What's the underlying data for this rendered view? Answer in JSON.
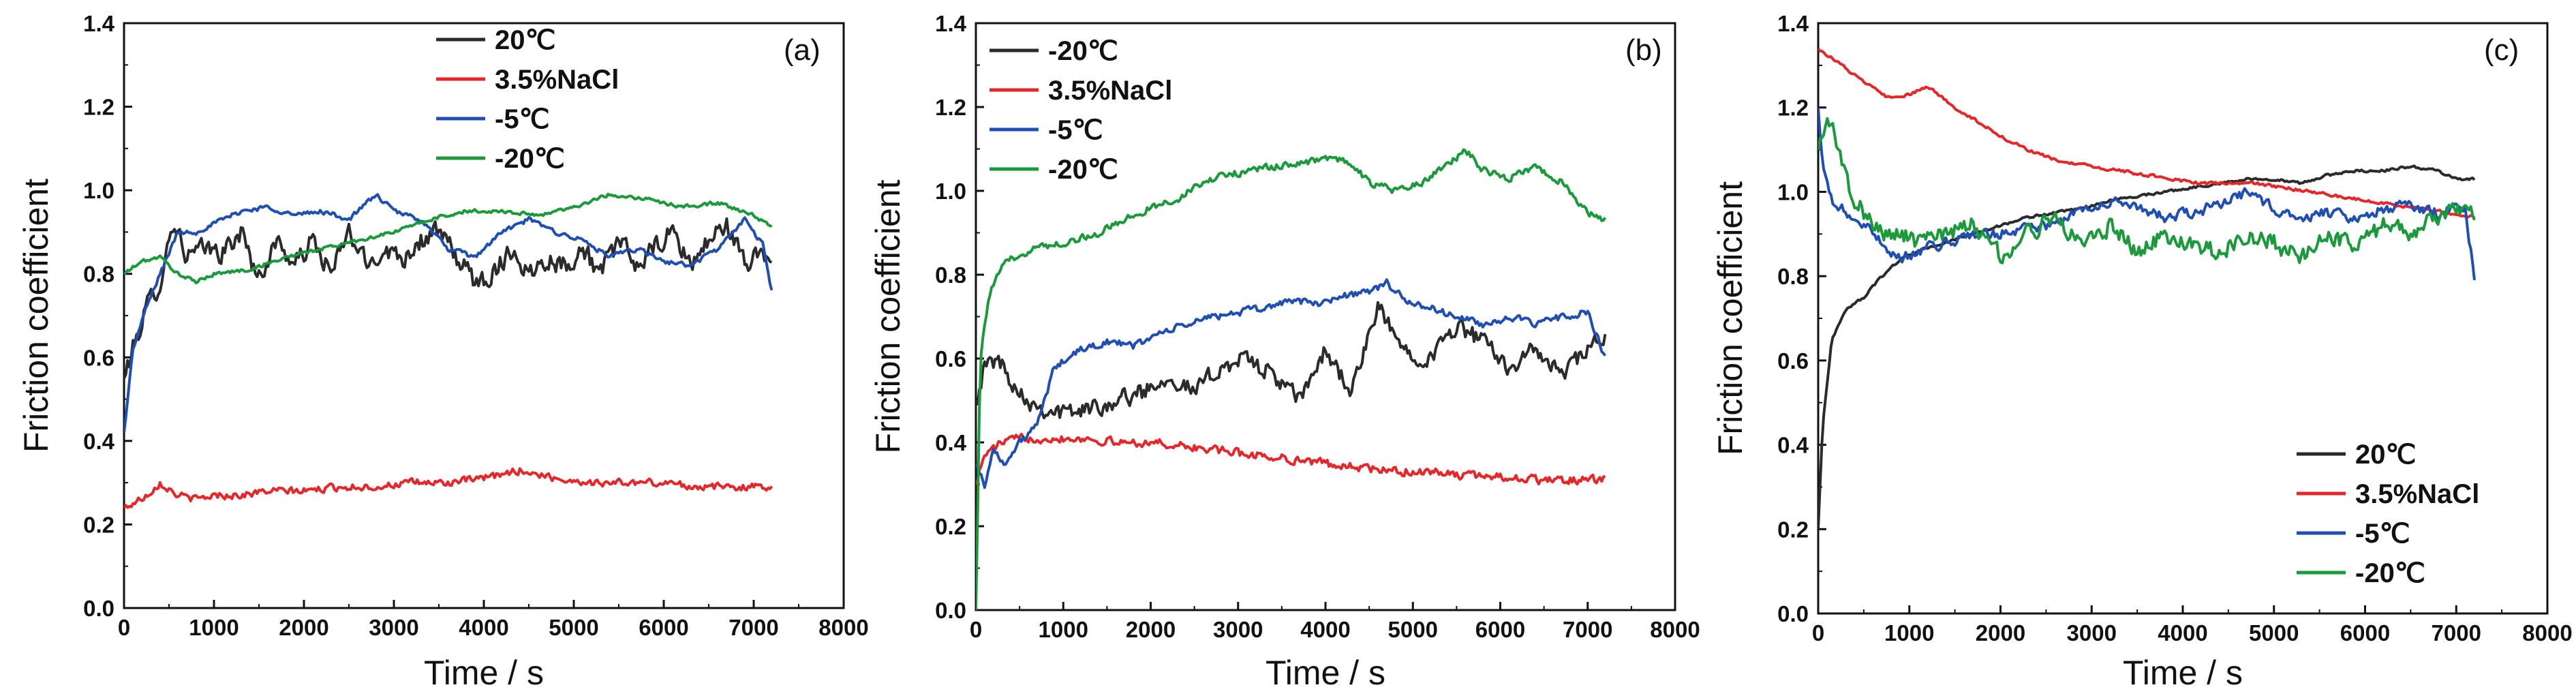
{
  "colors": {
    "black": "#2b2b2b",
    "red": "#e8262a",
    "blue": "#1f4fb4",
    "green": "#1a9a3a",
    "axis": "#111111"
  },
  "chart_data": [
    {
      "type": "line",
      "panel_label": "(a)",
      "xlabel": "Time / s",
      "ylabel": "Friction coefficient",
      "xlim": [
        0,
        8000
      ],
      "ylim": [
        0.0,
        1.4
      ],
      "xticks": [
        0,
        1000,
        2000,
        3000,
        4000,
        5000,
        6000,
        7000,
        8000
      ],
      "yticks": [
        "0.0",
        "0.2",
        "0.4",
        "0.6",
        "0.8",
        "1.0",
        "1.2",
        "1.4"
      ],
      "grid": false,
      "legend_position": "top-center",
      "series": [
        {
          "name": "20℃",
          "color": "black",
          "x": [
            0,
            100,
            250,
            400,
            550,
            700,
            900,
            1100,
            1300,
            1500,
            1700,
            1900,
            2100,
            2300,
            2500,
            2700,
            2900,
            3100,
            3300,
            3500,
            3700,
            3900,
            4100,
            4300,
            4500,
            4700,
            4900,
            5100,
            5300,
            5500,
            5700,
            5900,
            6100,
            6300,
            6500,
            6700,
            6900,
            7100,
            7200
          ],
          "y": [
            0.55,
            0.62,
            0.72,
            0.78,
            0.93,
            0.84,
            0.86,
            0.85,
            0.9,
            0.79,
            0.88,
            0.82,
            0.88,
            0.8,
            0.9,
            0.82,
            0.86,
            0.84,
            0.88,
            0.9,
            0.84,
            0.78,
            0.8,
            0.86,
            0.8,
            0.84,
            0.82,
            0.86,
            0.8,
            0.88,
            0.82,
            0.86,
            0.9,
            0.82,
            0.88,
            0.92,
            0.82,
            0.86,
            0.82
          ],
          "noise": 0.035
        },
        {
          "name": "3.5%NaCl",
          "color": "red",
          "x": [
            0,
            100,
            250,
            400,
            600,
            800,
            1000,
            1300,
            1600,
            2000,
            2400,
            2800,
            3200,
            3600,
            4000,
            4400,
            4800,
            5200,
            5600,
            6000,
            6400,
            6800,
            7200
          ],
          "y": [
            0.24,
            0.25,
            0.27,
            0.3,
            0.27,
            0.26,
            0.27,
            0.27,
            0.28,
            0.28,
            0.29,
            0.29,
            0.3,
            0.3,
            0.31,
            0.33,
            0.31,
            0.3,
            0.3,
            0.3,
            0.29,
            0.29,
            0.29
          ],
          "noise": 0.012
        },
        {
          "name": "-5℃",
          "color": "blue",
          "x": [
            0,
            100,
            250,
            400,
            600,
            800,
            1000,
            1300,
            1600,
            1900,
            2200,
            2500,
            2800,
            3000,
            3300,
            3600,
            3900,
            4200,
            4500,
            4800,
            5100,
            5400,
            5700,
            6000,
            6300,
            6600,
            6900,
            7100,
            7200
          ],
          "y": [
            0.42,
            0.62,
            0.72,
            0.8,
            0.9,
            0.9,
            0.92,
            0.95,
            0.96,
            0.94,
            0.95,
            0.93,
            0.99,
            0.95,
            0.93,
            0.86,
            0.84,
            0.9,
            0.93,
            0.9,
            0.88,
            0.84,
            0.86,
            0.83,
            0.82,
            0.86,
            0.93,
            0.87,
            0.76
          ],
          "noise": 0.008
        },
        {
          "name": "-20℃",
          "color": "green",
          "x": [
            0,
            200,
            400,
            600,
            800,
            1000,
            1400,
            1800,
            2200,
            2600,
            3000,
            3400,
            3800,
            4200,
            4600,
            5000,
            5400,
            5800,
            6200,
            6600,
            7000,
            7200
          ],
          "y": [
            0.8,
            0.83,
            0.84,
            0.8,
            0.78,
            0.8,
            0.81,
            0.84,
            0.86,
            0.88,
            0.9,
            0.93,
            0.95,
            0.95,
            0.94,
            0.96,
            0.99,
            0.98,
            0.96,
            0.97,
            0.94,
            0.91
          ],
          "noise": 0.006
        }
      ]
    },
    {
      "type": "line",
      "panel_label": "(b)",
      "xlabel": "Time / s",
      "ylabel": "Friction coefficient",
      "xlim": [
        0,
        8000
      ],
      "ylim": [
        0.0,
        1.4
      ],
      "xticks": [
        0,
        1000,
        2000,
        3000,
        4000,
        5000,
        6000,
        7000,
        8000
      ],
      "yticks": [
        "0.0",
        "0.2",
        "0.4",
        "0.6",
        "0.8",
        "1.0",
        "1.2",
        "1.4"
      ],
      "grid": false,
      "legend_position": "top-left",
      "series": [
        {
          "name": "-20℃",
          "color": "black",
          "x": [
            0,
            100,
            250,
            400,
            600,
            800,
            1000,
            1300,
            1600,
            1900,
            2200,
            2500,
            2800,
            3100,
            3400,
            3700,
            4000,
            4300,
            4600,
            4900,
            5200,
            5500,
            5800,
            6100,
            6400,
            6700,
            7000,
            7200
          ],
          "y": [
            0.5,
            0.58,
            0.6,
            0.55,
            0.5,
            0.48,
            0.47,
            0.48,
            0.5,
            0.52,
            0.56,
            0.52,
            0.58,
            0.6,
            0.56,
            0.5,
            0.62,
            0.52,
            0.72,
            0.62,
            0.6,
            0.68,
            0.64,
            0.58,
            0.62,
            0.56,
            0.62,
            0.65
          ],
          "noise": 0.03
        },
        {
          "name": "3.5%NaCl",
          "color": "red",
          "x": [
            0,
            100,
            300,
            500,
            800,
            1200,
            1600,
            2000,
            2400,
            2800,
            3200,
            3600,
            4000,
            4400,
            4800,
            5200,
            5600,
            6000,
            6400,
            6800,
            7200
          ],
          "y": [
            0.3,
            0.37,
            0.4,
            0.41,
            0.41,
            0.41,
            0.4,
            0.4,
            0.39,
            0.38,
            0.37,
            0.36,
            0.35,
            0.34,
            0.33,
            0.33,
            0.32,
            0.32,
            0.31,
            0.31,
            0.31
          ],
          "noise": 0.014
        },
        {
          "name": "-5℃",
          "color": "blue",
          "x": [
            0,
            100,
            200,
            350,
            500,
            700,
            900,
            1200,
            1500,
            1800,
            2100,
            2400,
            2700,
            3000,
            3300,
            3600,
            3900,
            4200,
            4500,
            4700,
            4900,
            5200,
            5500,
            5800,
            6100,
            6400,
            6700,
            7000,
            7200
          ],
          "y": [
            0.35,
            0.3,
            0.38,
            0.35,
            0.4,
            0.44,
            0.58,
            0.62,
            0.64,
            0.63,
            0.66,
            0.68,
            0.7,
            0.71,
            0.72,
            0.74,
            0.73,
            0.75,
            0.76,
            0.78,
            0.74,
            0.72,
            0.7,
            0.68,
            0.7,
            0.68,
            0.7,
            0.71,
            0.6
          ],
          "noise": 0.012
        },
        {
          "name": "-20℃",
          "color": "green",
          "x": [
            0,
            50,
            150,
            300,
            500,
            800,
            1100,
            1400,
            1700,
            2000,
            2300,
            2600,
            2900,
            3200,
            3500,
            3800,
            4100,
            4300,
            4500,
            4800,
            5100,
            5400,
            5600,
            5800,
            6100,
            6400,
            6700,
            7000,
            7200
          ],
          "y": [
            0.0,
            0.6,
            0.75,
            0.82,
            0.85,
            0.87,
            0.88,
            0.9,
            0.93,
            0.96,
            0.98,
            1.02,
            1.04,
            1.05,
            1.06,
            1.07,
            1.08,
            1.06,
            1.02,
            1.0,
            1.02,
            1.06,
            1.1,
            1.05,
            1.03,
            1.06,
            1.02,
            0.95,
            0.93
          ],
          "noise": 0.012
        }
      ]
    },
    {
      "type": "line",
      "panel_label": "(c)",
      "xlabel": "Time / s",
      "ylabel": "Friction coefficient",
      "xlim": [
        0,
        8000
      ],
      "ylim": [
        0.0,
        1.4
      ],
      "xticks": [
        0,
        1000,
        2000,
        3000,
        4000,
        5000,
        6000,
        7000,
        8000
      ],
      "yticks": [
        "0.0",
        "0.2",
        "0.4",
        "0.6",
        "0.8",
        "1.0",
        "1.2",
        "1.4"
      ],
      "grid": false,
      "legend_position": "bottom-right",
      "series": [
        {
          "name": "20℃",
          "color": "black",
          "x": [
            0,
            50,
            150,
            300,
            500,
            700,
            900,
            1100,
            1400,
            1700,
            2000,
            2300,
            2600,
            2900,
            3200,
            3500,
            3800,
            4100,
            4400,
            4700,
            5000,
            5300,
            5600,
            5900,
            6200,
            6500,
            6800,
            7000,
            7200
          ],
          "y": [
            0.2,
            0.45,
            0.65,
            0.72,
            0.75,
            0.8,
            0.84,
            0.86,
            0.88,
            0.9,
            0.92,
            0.94,
            0.95,
            0.96,
            0.98,
            0.99,
            1.0,
            1.01,
            1.02,
            1.03,
            1.03,
            1.02,
            1.04,
            1.05,
            1.05,
            1.06,
            1.05,
            1.03,
            1.03
          ],
          "noise": 0.004
        },
        {
          "name": "3.5%NaCl",
          "color": "red",
          "x": [
            0,
            200,
            500,
            800,
            1000,
            1200,
            1500,
            1800,
            2100,
            2400,
            2700,
            3000,
            3300,
            3600,
            3900,
            4200,
            4500,
            4800,
            5100,
            5400,
            5700,
            6000,
            6300,
            6600,
            6900,
            7200
          ],
          "y": [
            1.34,
            1.31,
            1.26,
            1.22,
            1.23,
            1.25,
            1.2,
            1.16,
            1.12,
            1.09,
            1.07,
            1.06,
            1.05,
            1.04,
            1.03,
            1.02,
            1.02,
            1.02,
            1.01,
            1.0,
            0.99,
            0.98,
            0.97,
            0.96,
            0.95,
            0.94
          ],
          "noise": 0.005
        },
        {
          "name": "-5℃",
          "color": "blue",
          "x": [
            0,
            50,
            150,
            300,
            500,
            700,
            900,
            1100,
            1400,
            1700,
            2000,
            2300,
            2600,
            2900,
            3200,
            3500,
            3800,
            4100,
            4400,
            4700,
            5000,
            5300,
            5600,
            5900,
            6200,
            6500,
            6800,
            7000,
            7100,
            7200
          ],
          "y": [
            1.2,
            1.05,
            0.98,
            0.95,
            0.92,
            0.88,
            0.84,
            0.86,
            0.88,
            0.9,
            0.9,
            0.92,
            0.92,
            0.96,
            0.98,
            0.96,
            0.94,
            0.95,
            0.97,
            1.0,
            0.96,
            0.94,
            0.95,
            0.94,
            0.96,
            0.97,
            0.95,
            0.96,
            0.95,
            0.8
          ],
          "noise": 0.018
        },
        {
          "name": "-20℃",
          "color": "green",
          "x": [
            0,
            100,
            200,
            350,
            500,
            700,
            900,
            1100,
            1400,
            1700,
            2000,
            2300,
            2600,
            2900,
            3200,
            3500,
            3800,
            4100,
            4400,
            4700,
            5000,
            5300,
            5600,
            5900,
            6200,
            6500,
            6800,
            7000,
            7200
          ],
          "y": [
            1.1,
            1.18,
            1.12,
            1.0,
            0.95,
            0.9,
            0.9,
            0.88,
            0.9,
            0.92,
            0.85,
            0.9,
            0.94,
            0.88,
            0.92,
            0.86,
            0.9,
            0.88,
            0.85,
            0.9,
            0.88,
            0.84,
            0.9,
            0.87,
            0.92,
            0.9,
            0.94,
            0.96,
            0.95
          ],
          "noise": 0.03
        }
      ]
    }
  ]
}
